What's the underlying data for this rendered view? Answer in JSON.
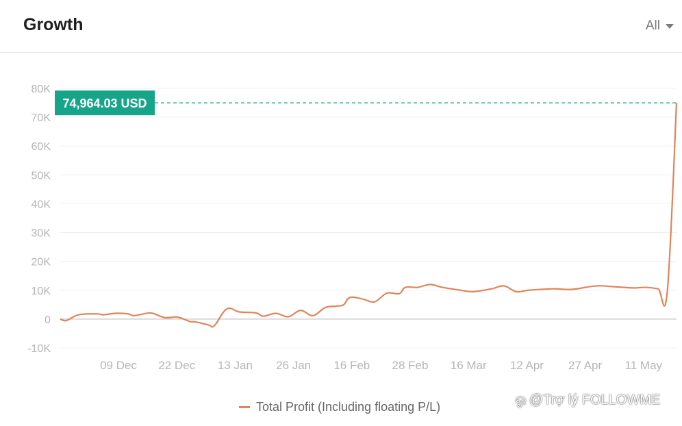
{
  "header": {
    "title": "Growth",
    "filter_label": "All"
  },
  "watermark": {
    "text": "@Trợ lý FOLLOWME",
    "icon": "swirl-icon"
  },
  "colors": {
    "line": "#e0845a",
    "badge": "#17a589",
    "dashed": "#17a589"
  },
  "chart_data": {
    "type": "line",
    "title": "Growth",
    "xlabel": "",
    "ylabel": "",
    "ylim": [
      -10000,
      80000
    ],
    "y_ticks": [
      -10000,
      0,
      10000,
      20000,
      30000,
      40000,
      50000,
      60000,
      70000,
      80000
    ],
    "y_tick_labels": [
      "-10K",
      "0",
      "10K",
      "20K",
      "30K",
      "40K",
      "50K",
      "60K",
      "70K",
      "80K"
    ],
    "x_tick_labels": [
      "09 Dec",
      "22 Dec",
      "13 Jan",
      "26 Jan",
      "16 Feb",
      "28 Feb",
      "16 Mar",
      "12 Apr",
      "27 Apr",
      "11 May"
    ],
    "grid": true,
    "legend_position": "bottom",
    "annotation": {
      "label": "74,964.03 USD",
      "value": 74964.03
    },
    "series": [
      {
        "name": "Total Profit (Including floating P/L)",
        "x": [
          0,
          0.01,
          0.03,
          0.06,
          0.07,
          0.09,
          0.11,
          0.12,
          0.14,
          0.15,
          0.17,
          0.19,
          0.21,
          0.22,
          0.24,
          0.25,
          0.27,
          0.29,
          0.31,
          0.32,
          0.33,
          0.35,
          0.37,
          0.39,
          0.41,
          0.43,
          0.45,
          0.46,
          0.47,
          0.49,
          0.51,
          0.53,
          0.55,
          0.56,
          0.58,
          0.6,
          0.62,
          0.65,
          0.67,
          0.7,
          0.72,
          0.74,
          0.76,
          0.8,
          0.83,
          0.87,
          0.9,
          0.93,
          0.95,
          0.97,
          0.985,
          1.0
        ],
        "values": [
          0,
          -500,
          1500,
          1800,
          1500,
          2000,
          1800,
          1200,
          2000,
          2000,
          500,
          700,
          -800,
          -1000,
          -2000,
          -2300,
          3500,
          2500,
          2300,
          2000,
          1000,
          2000,
          800,
          3000,
          1200,
          4000,
          4500,
          5000,
          7500,
          7000,
          6000,
          9000,
          8800,
          11000,
          11000,
          12000,
          11000,
          10000,
          9500,
          10500,
          11500,
          9500,
          10000,
          10500,
          10300,
          11500,
          11200,
          10800,
          11000,
          10500,
          9500,
          74964.03
        ]
      }
    ]
  },
  "legend": {
    "label": "Total Profit (Including floating P/L)"
  }
}
